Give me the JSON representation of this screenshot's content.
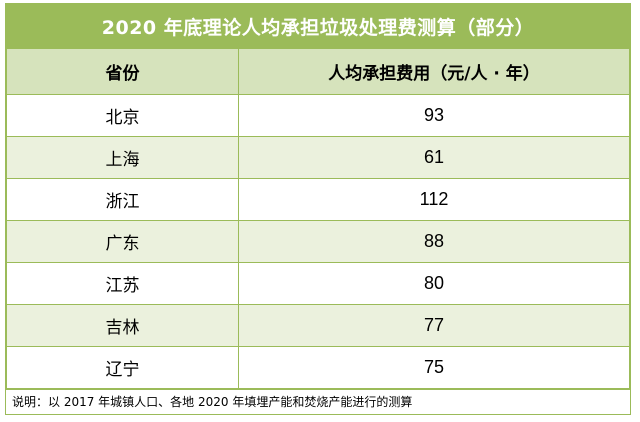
{
  "chart_data": {
    "type": "table",
    "title": "2020 年底理论人均承担垃圾处理费测算（部分）",
    "columns": [
      "省份",
      "人均承担费用（元/人 · 年）"
    ],
    "categories": [
      "北京",
      "上海",
      "浙江",
      "广东",
      "江苏",
      "吉林",
      "辽宁"
    ],
    "values": [
      93,
      61,
      112,
      88,
      80,
      77,
      75
    ],
    "note": "说明：以 2017 年城镇人口、各地 2020 年填埋产能和焚烧产能进行的测算"
  },
  "colors": {
    "header_green": "#9bbb59",
    "column_header_bg": "#d6e3bc",
    "row_alt_bg": "#ebf1dd",
    "border": "#9bbb59"
  }
}
